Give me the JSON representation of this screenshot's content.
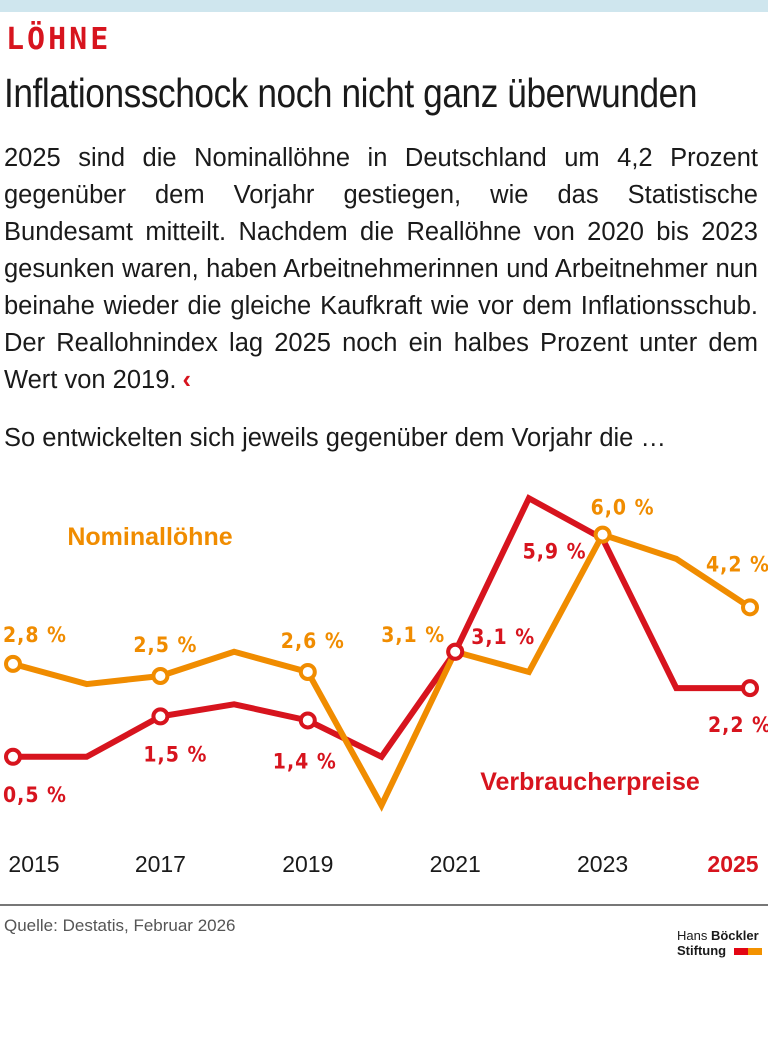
{
  "kicker": "LÖHNE",
  "title": "Inflationsschock noch nicht ganz überwunden",
  "intro": "2025 sind die Nominallöhne in Deutschland um 4,2 Prozent gegenüber dem Vorjahr gestiegen, wie das Statistische Bundesamt mitteilt. Nachdem die Reallöhne von 2020 bis 2023 gesunken waren, haben Arbeitnehmerinnen und Arbeitnehmer nun beinahe wieder die gleiche Kaufkraft wie vor dem Inflationsschub. Der Reallohnindex lag 2025 noch ein halbes Prozent unter dem Wert von 2019.",
  "intro_mark": "‹",
  "lead": "So entwickelten sich jeweils gegenüber dem Vorjahr die …",
  "source": "Quelle: Destatis, Februar 2026",
  "logo": {
    "line1a": "Hans ",
    "line1b": "Böckler",
    "line2": "Stiftung"
  },
  "colors": {
    "nominal": "#f08c00",
    "cpi": "#d7141e",
    "logo_red": "#e30613",
    "logo_orange": "#f39200"
  },
  "chart_data": {
    "type": "line",
    "x": [
      2015,
      2016,
      2017,
      2018,
      2019,
      2020,
      2021,
      2022,
      2023,
      2024,
      2025
    ],
    "tick_labels": [
      "2015",
      "2017",
      "2019",
      "2021",
      "2023",
      "2025"
    ],
    "highlight_tick": "2025",
    "grid": false,
    "series": [
      {
        "name": "Nominallöhne",
        "color": "#f08c00",
        "values": [
          2.8,
          2.3,
          2.5,
          3.1,
          2.6,
          -0.7,
          3.1,
          2.6,
          6.0,
          5.4,
          4.2
        ],
        "labels": {
          "2015": "2,8 %",
          "2017": "2,5 %",
          "2019": "2,6 %",
          "2021": "3,1 %",
          "2023": "6,0 %",
          "2025": "4,2 %"
        },
        "markers": [
          2015,
          2017,
          2019,
          2021,
          2023,
          2025
        ]
      },
      {
        "name": "Verbraucherpreise",
        "color": "#d7141e",
        "values": [
          0.5,
          0.5,
          1.5,
          1.8,
          1.4,
          0.5,
          3.1,
          6.9,
          5.9,
          2.2,
          2.2
        ],
        "labels": {
          "2015": "0,5 %",
          "2017": "1,5 %",
          "2019": "1,4 %",
          "2021": "3,1 %",
          "2023": "5,9 %",
          "2025": "2,2 %"
        },
        "markers": [
          2015,
          2017,
          2019,
          2021,
          2025
        ]
      }
    ]
  }
}
